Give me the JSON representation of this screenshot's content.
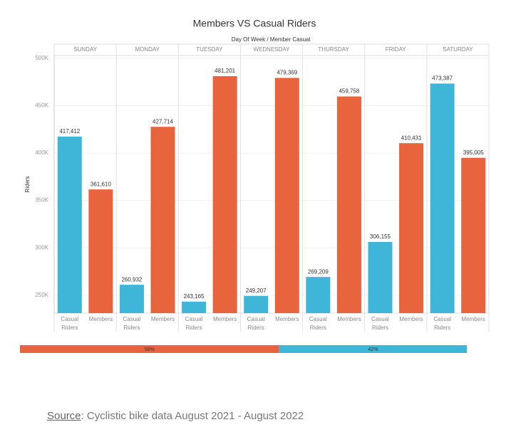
{
  "chart_data": [
    {
      "type": "grouped-bar",
      "title": "Members VS Casual Riders",
      "subtitle": "Day Of Week / Member Casual",
      "y_label": "Riders",
      "categories": [
        "SUNDAY",
        "MONDAY",
        "TUESDAY",
        "WEDNESDAY",
        "THURSDAY",
        "FRIDAY",
        "SATURDAY"
      ],
      "series": [
        {
          "name": "Casual Riders",
          "color": "#3fb5d8",
          "values": [
            417412,
            260932,
            243165,
            249207,
            269209,
            306155,
            473387
          ],
          "value_labels": [
            "417,412",
            "260,932",
            "243,165",
            "249,207",
            "269,209",
            "306,155",
            "473,387"
          ]
        },
        {
          "name": "Members",
          "color": "#e8643c",
          "values": [
            361610,
            427714,
            481201,
            479369,
            459758,
            410431,
            395005
          ],
          "value_labels": [
            "361,610",
            "427,714",
            "481,201",
            "479,369",
            "459,758",
            "410,431",
            "395,005"
          ]
        }
      ],
      "ylim": [
        231000,
        503000
      ],
      "yticks": [
        {
          "value": 250000,
          "label": "250K"
        },
        {
          "value": 300000,
          "label": "300K"
        },
        {
          "value": 350000,
          "label": "350K"
        },
        {
          "value": 400000,
          "label": "400K"
        },
        {
          "value": 450000,
          "label": "450K"
        },
        {
          "value": 500000,
          "label": "500K"
        }
      ],
      "grid": true
    },
    {
      "type": "share-bar",
      "values": [
        58,
        42
      ],
      "value_labels": [
        "58%",
        "42%"
      ],
      "colors": [
        "#e8643c",
        "#3fb5d8"
      ]
    }
  ],
  "footer": {
    "source_label": "Source",
    "source_text": ": Cyclistic bike data August 2021 - August 2022"
  }
}
